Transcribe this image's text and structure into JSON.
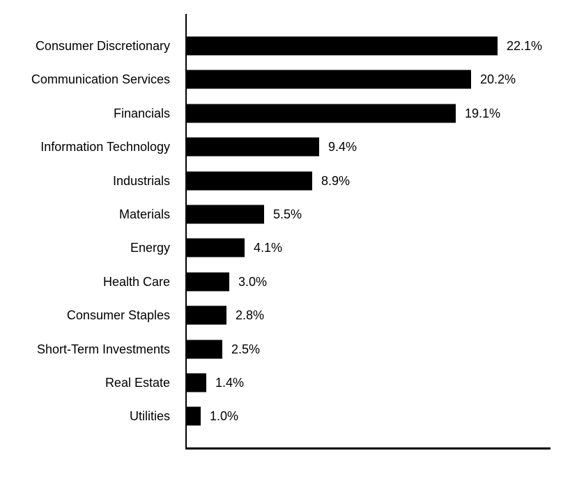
{
  "chart_data": {
    "type": "bar",
    "orientation": "horizontal",
    "title": "",
    "xlabel": "",
    "ylabel": "",
    "categories": [
      "Consumer Discretionary",
      "Communication Services",
      "Financials",
      "Information Technology",
      "Industrials",
      "Materials",
      "Energy",
      "Health Care",
      "Consumer Staples",
      "Short-Term Investments",
      "Real Estate",
      "Utilities"
    ],
    "values": [
      22.1,
      20.2,
      19.1,
      9.4,
      8.9,
      5.5,
      4.1,
      3.0,
      2.8,
      2.5,
      1.4,
      1.0
    ],
    "value_labels": [
      "22.1%",
      "20.2%",
      "19.1%",
      "9.4%",
      "8.9%",
      "5.5%",
      "4.1%",
      "3.0%",
      "2.8%",
      "2.5%",
      "1.4%",
      "1.0%"
    ],
    "unit": "%",
    "xlim": [
      0,
      23
    ],
    "grid": false,
    "legend": false,
    "bar_color": "#000000",
    "axis_color": "#000000",
    "text_color": "#000000",
    "background_color": "#ffffff"
  }
}
